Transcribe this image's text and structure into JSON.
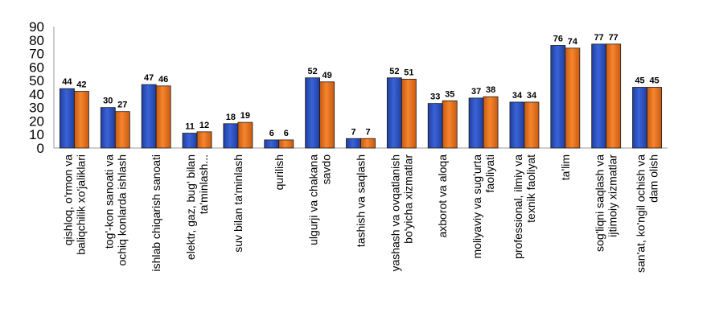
{
  "chart_data": {
    "type": "bar",
    "categories": [
      [
        "qishloq, o'rmon va",
        "baliqchilik xo'jaliklari"
      ],
      [
        "tog'-kon sanoati  va",
        "ochiq konlarda ishlash"
      ],
      [
        "ishlab chiqarish sanoati"
      ],
      [
        "elektr,  gaz, bug' bilan",
        "ta'minlash..."
      ],
      [
        "suv bilan ta'minlash"
      ],
      [
        "qurilish"
      ],
      [
        "ulgurji va chakana",
        "savdo"
      ],
      [
        "tashish va saqlash"
      ],
      [
        "yashash va ovqatlanish",
        "bo'yicha xizmatlar"
      ],
      [
        "axborot va aloqa"
      ],
      [
        "moliyaviy va sug'urta",
        "faoliyati"
      ],
      [
        "professional, ilmiy va",
        "texnik faoliyat"
      ],
      [
        "ta'lim"
      ],
      [
        "sog'liqni saqlash va",
        "ijtimoiy xizmatlar"
      ],
      [
        "san'at,  ko'ngil ochish va",
        "dam olish"
      ]
    ],
    "series": [
      {
        "color": "#2f55c4",
        "values": [
          44,
          30,
          47,
          11,
          18,
          6,
          52,
          7,
          52,
          33,
          37,
          34,
          76,
          77,
          45
        ]
      },
      {
        "color": "#f07a24",
        "values": [
          42,
          27,
          46,
          12,
          19,
          6,
          49,
          7,
          51,
          35,
          38,
          34,
          74,
          77,
          45
        ]
      }
    ],
    "yticks": [
      0,
      10,
      20,
      30,
      40,
      50,
      60,
      70,
      80,
      90
    ],
    "ylim": [
      0,
      90
    ],
    "grid": false,
    "legend": "none"
  }
}
